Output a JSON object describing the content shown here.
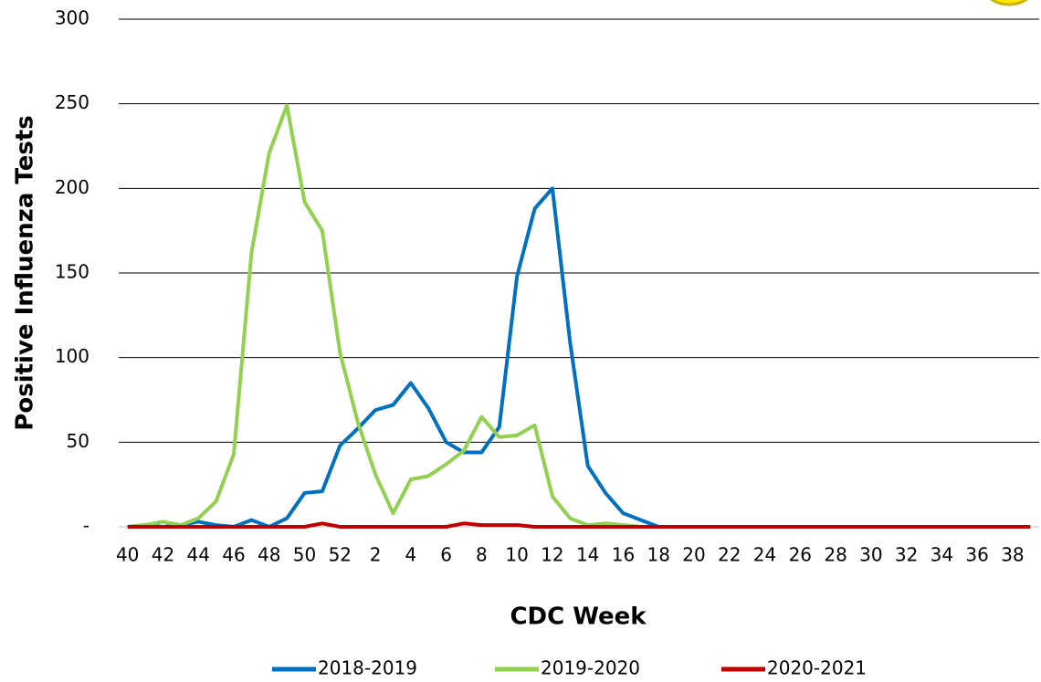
{
  "chart_data": {
    "type": "line",
    "y_label": "Positive Influenza Tests",
    "x_label": "CDC Week",
    "categories": [
      "40",
      null,
      "42",
      null,
      "44",
      null,
      "46",
      null,
      "48",
      null,
      "50",
      null,
      "52",
      null,
      "2",
      null,
      "4",
      null,
      "6",
      null,
      "8",
      null,
      "10",
      null,
      "12",
      null,
      "14",
      null,
      "16",
      null,
      "18",
      null,
      "20",
      null,
      "22",
      null,
      "24",
      null,
      "26",
      null,
      "28",
      null,
      "30",
      null,
      "32",
      null,
      "34",
      null,
      "36",
      null,
      "38",
      null
    ],
    "series": [
      {
        "name": "2018-2019",
        "color": "#0070c0",
        "values": [
          0,
          1,
          0,
          1,
          3,
          1,
          0,
          4,
          0,
          5,
          20,
          21,
          48,
          58,
          69,
          72,
          85,
          70,
          50,
          44,
          44,
          59,
          148,
          188,
          200,
          109,
          36,
          20,
          8,
          4,
          0,
          0,
          0,
          0,
          0,
          0,
          0,
          0,
          0,
          0,
          0,
          0,
          0,
          0,
          0,
          0,
          0,
          0,
          0,
          0,
          0,
          0
        ]
      },
      {
        "name": "2019-2020",
        "color": "#92d050",
        "values": [
          0,
          1,
          3,
          1,
          5,
          15,
          43,
          162,
          221,
          249,
          192,
          175,
          103,
          62,
          31,
          8,
          28,
          30,
          37,
          45,
          65,
          53,
          54,
          60,
          18,
          5,
          1,
          2,
          1,
          0,
          0,
          0,
          0,
          0,
          0,
          0,
          0,
          0,
          0,
          0,
          0,
          0,
          0,
          0,
          0,
          0,
          0,
          0,
          0,
          0,
          0,
          0
        ]
      },
      {
        "name": "2020-2021",
        "color": "#c00000",
        "values": [
          0,
          0,
          0,
          0,
          0,
          0,
          0,
          0,
          0,
          0,
          0,
          2,
          0,
          0,
          0,
          0,
          0,
          0,
          0,
          2,
          1,
          1,
          1,
          0,
          0,
          0,
          0,
          0,
          0,
          0,
          0,
          0,
          0,
          0,
          0,
          0,
          0,
          0,
          0,
          0,
          0,
          0,
          0,
          0,
          0,
          0,
          0,
          0,
          0,
          0,
          0,
          0
        ]
      }
    ],
    "ylim": [
      0,
      300
    ],
    "yticks": [
      {
        "value": 0,
        "label": "-"
      },
      50,
      100,
      150,
      200,
      250,
      300
    ],
    "grid": true,
    "legend": "bottom"
  }
}
